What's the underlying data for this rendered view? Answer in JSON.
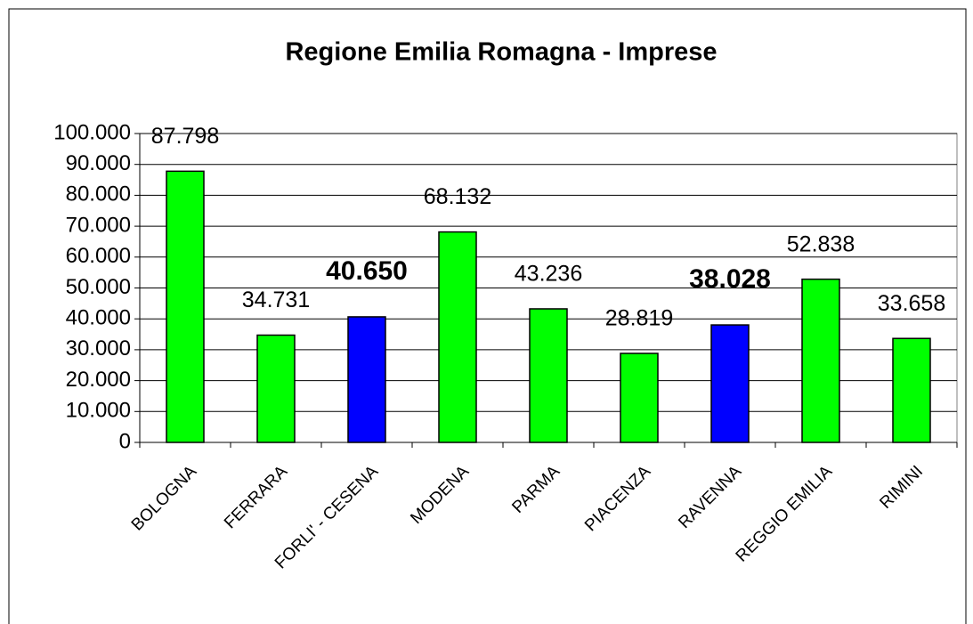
{
  "chart_data": {
    "type": "bar",
    "title": "Regione Emilia Romagna - Imprese",
    "categories": [
      "BOLOGNA",
      "FERRARA",
      "FORLI' - CESENA",
      "MODENA",
      "PARMA",
      "PIACENZA",
      "RAVENNA",
      "REGGIO EMILIA",
      "RIMINI"
    ],
    "values": [
      87798,
      34731,
      40650,
      68132,
      43236,
      28819,
      38028,
      52838,
      33658
    ],
    "value_labels": [
      "87.798",
      "34.731",
      "40.650",
      "68.132",
      "43.236",
      "28.819",
      "38.028",
      "52.838",
      "33.658"
    ],
    "colors": [
      "#00ff00",
      "#00ff00",
      "#0000ff",
      "#00ff00",
      "#00ff00",
      "#00ff00",
      "#0000ff",
      "#00ff00",
      "#00ff00"
    ],
    "bold_labels": [
      false,
      false,
      true,
      false,
      false,
      false,
      true,
      false,
      false
    ],
    "ylim": [
      0,
      100000
    ],
    "yticks": [
      0,
      {
        "value": 10000,
        "label": "10.000"
      },
      {
        "value": 20000,
        "label": "20.000"
      },
      {
        "value": 30000,
        "label": "30.000"
      },
      {
        "value": 40000,
        "label": "40.000"
      },
      {
        "value": 50000,
        "label": "50.000"
      },
      {
        "value": 60000,
        "label": "60.000"
      },
      {
        "value": 70000,
        "label": "70.000"
      },
      {
        "value": 80000,
        "label": "80.000"
      },
      {
        "value": 90000,
        "label": "90.000"
      },
      {
        "value": 100000,
        "label": "100.000"
      }
    ],
    "grid": true
  }
}
